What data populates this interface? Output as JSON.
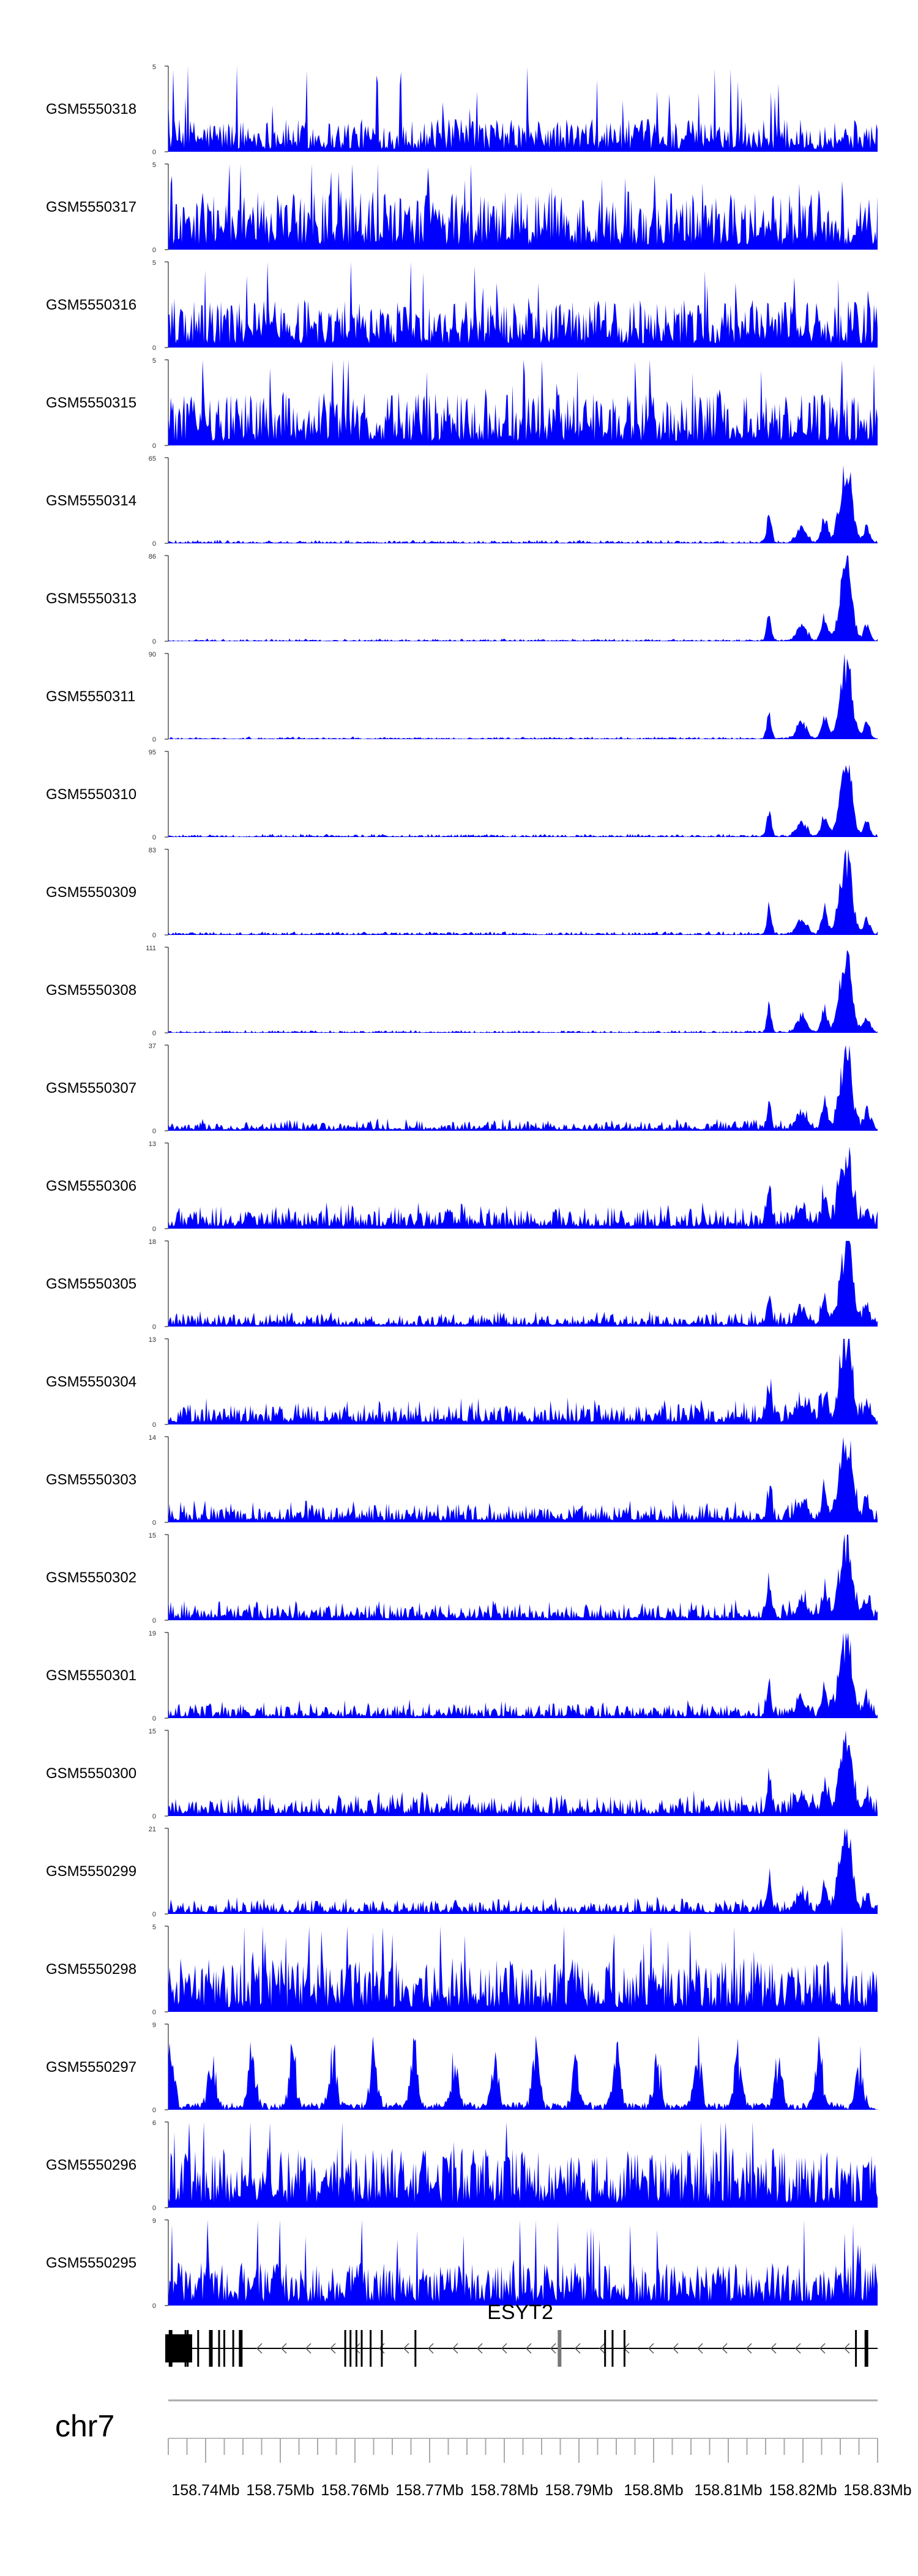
{
  "chart_data": {
    "type": "area",
    "title": "",
    "chromosome": "chr7",
    "region": {
      "start": 158.735,
      "end": 158.83,
      "unit": "Mb"
    },
    "x_ticks": [
      158.74,
      158.75,
      158.76,
      158.77,
      158.78,
      158.79,
      158.8,
      158.81,
      158.82,
      158.83
    ],
    "x_tick_labels": [
      "158.74Mb",
      "158.75Mb",
      "158.76Mb",
      "158.77Mb",
      "158.78Mb",
      "158.79Mb",
      "158.8Mb",
      "158.81Mb",
      "158.82Mb",
      "158.83Mb"
    ],
    "track_color": "#0000ff",
    "tracks": [
      {
        "name": "GSM5550318",
        "ymax": 5,
        "profile": "noisy",
        "base": 1.1,
        "peak": 0
      },
      {
        "name": "GSM5550317",
        "ymax": 5,
        "profile": "noisy",
        "base": 2.0,
        "peak": 0
      },
      {
        "name": "GSM5550316",
        "ymax": 5,
        "profile": "noisy",
        "base": 1.6,
        "peak": 0
      },
      {
        "name": "GSM5550315",
        "ymax": 5,
        "profile": "noisy",
        "base": 1.8,
        "peak": 0
      },
      {
        "name": "GSM5550314",
        "ymax": 65,
        "profile": "peaked",
        "base": 1.5,
        "peak": 62
      },
      {
        "name": "GSM5550313",
        "ymax": 86,
        "profile": "peaked",
        "base": 1.5,
        "peak": 82
      },
      {
        "name": "GSM5550311",
        "ymax": 90,
        "profile": "peaked",
        "base": 1.5,
        "peak": 86
      },
      {
        "name": "GSM5550310",
        "ymax": 95,
        "profile": "peaked",
        "base": 2.0,
        "peak": 90
      },
      {
        "name": "GSM5550309",
        "ymax": 83,
        "profile": "peaked",
        "base": 2.0,
        "peak": 80
      },
      {
        "name": "GSM5550308",
        "ymax": 111,
        "profile": "peaked",
        "base": 2.0,
        "peak": 106
      },
      {
        "name": "GSM5550307",
        "ymax": 37,
        "profile": "peaked",
        "base": 3.0,
        "peak": 35
      },
      {
        "name": "GSM5550306",
        "ymax": 13,
        "profile": "peaked",
        "base": 2.2,
        "peak": 12
      },
      {
        "name": "GSM5550305",
        "ymax": 18,
        "profile": "peaked",
        "base": 1.8,
        "peak": 17
      },
      {
        "name": "GSM5550304",
        "ymax": 13,
        "profile": "peaked",
        "base": 2.2,
        "peak": 12
      },
      {
        "name": "GSM5550303",
        "ymax": 14,
        "profile": "peaked",
        "base": 2.0,
        "peak": 13
      },
      {
        "name": "GSM5550302",
        "ymax": 15,
        "profile": "peaked",
        "base": 2.0,
        "peak": 14
      },
      {
        "name": "GSM5550301",
        "ymax": 19,
        "profile": "peaked",
        "base": 2.2,
        "peak": 18
      },
      {
        "name": "GSM5550300",
        "ymax": 15,
        "profile": "peaked",
        "base": 2.4,
        "peak": 14
      },
      {
        "name": "GSM5550299",
        "ymax": 21,
        "profile": "peaked",
        "base": 2.4,
        "peak": 20
      },
      {
        "name": "GSM5550298",
        "ymax": 5,
        "profile": "noisy",
        "base": 1.8,
        "peak": 0
      },
      {
        "name": "GSM5550297",
        "ymax": 9,
        "profile": "spiky",
        "base": 2.0,
        "peak": 0
      },
      {
        "name": "GSM5550296",
        "ymax": 6,
        "profile": "noisy",
        "base": 2.4,
        "peak": 0
      },
      {
        "name": "GSM5550295",
        "ymax": 9,
        "profile": "noisy",
        "base": 2.6,
        "peak": 0
      }
    ],
    "gene": {
      "name": "ESYT2",
      "strand": "-",
      "exons_mb": [
        158.7353,
        158.7373,
        158.7376,
        158.739,
        158.7407,
        158.7418,
        158.7425,
        158.7437,
        158.7447,
        158.7587,
        158.7594,
        158.7602,
        158.7609,
        158.7621,
        158.7636,
        158.7681,
        158.7874,
        158.7935,
        158.7945,
        158.7961,
        158.8271,
        158.8285
      ]
    }
  }
}
